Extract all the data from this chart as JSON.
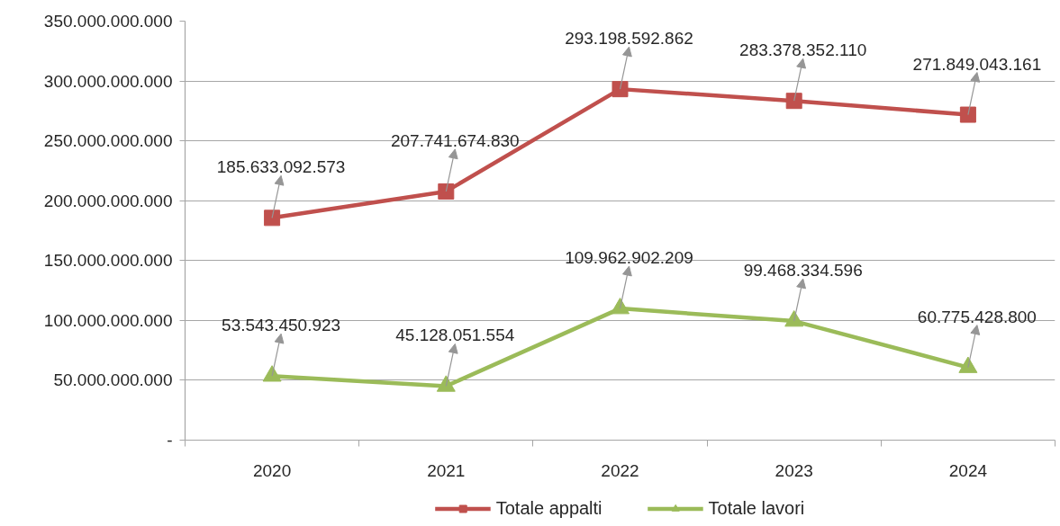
{
  "chart_data": {
    "type": "line",
    "categories": [
      "2020",
      "2021",
      "2022",
      "2023",
      "2024"
    ],
    "series": [
      {
        "name": "Totale appalti",
        "color": "#c0504d",
        "marker": "square",
        "values": [
          185633092573,
          207741674830,
          293198592862,
          283378352110,
          271849043161
        ],
        "value_labels": [
          "185.633.092.573",
          "207.741.674.830",
          "293.198.592.862",
          "283.378.352.110",
          "271.849.043.161"
        ]
      },
      {
        "name": "Totale lavori",
        "color": "#9bbb59",
        "marker": "triangle",
        "values": [
          53543450923,
          45128051554,
          109962902209,
          99468334596,
          60775428800
        ],
        "value_labels": [
          "53.543.450.923",
          "45.128.051.554",
          "109.962.902.209",
          "99.468.334.596",
          "60.775.428.800"
        ]
      }
    ],
    "ylim": [
      0,
      350000000000
    ],
    "yticks": [
      {
        "value": 0,
        "label": "-"
      },
      {
        "value": 50000000000,
        "label": "50.000.000.000"
      },
      {
        "value": 100000000000,
        "label": "100.000.000.000"
      },
      {
        "value": 150000000000,
        "label": "150.000.000.000"
      },
      {
        "value": 200000000000,
        "label": "200.000.000.000"
      },
      {
        "value": 250000000000,
        "label": "250.000.000.000"
      },
      {
        "value": 300000000000,
        "label": "300.000.000.000"
      },
      {
        "value": 350000000000,
        "label": "350.000.000.000"
      }
    ],
    "grid": "y",
    "legend": "bottom",
    "line_style": "solid"
  }
}
